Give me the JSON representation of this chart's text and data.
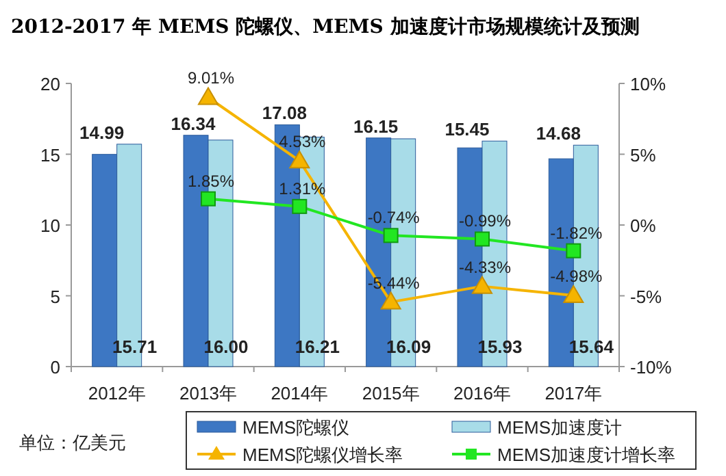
{
  "chart_data": {
    "type": "bar",
    "title": "2012-2017 年 MEMS 陀螺仪、MEMS 加速度计市场规模统计及预测",
    "categories": [
      "2012年",
      "2013年",
      "2014年",
      "2015年",
      "2016年",
      "2017年"
    ],
    "series": [
      {
        "name": "MEMS陀螺仪",
        "color": "#3d77c3",
        "values": [
          14.99,
          16.34,
          17.08,
          16.15,
          15.45,
          14.68
        ],
        "value_labels": [
          "14.99",
          "16.34",
          "17.08",
          "16.15",
          "15.45",
          "14.68"
        ]
      },
      {
        "name": "MEMS加速度计",
        "color": "#a8dce8",
        "values": [
          15.71,
          16.0,
          16.21,
          16.09,
          15.93,
          15.64
        ],
        "value_labels": [
          "15.71",
          "16.00",
          "16.21",
          "16.09",
          "15.93",
          "15.64"
        ]
      },
      {
        "name": "MEMS陀螺仪增长率",
        "type": "line",
        "axis": "y2",
        "marker": "triangle",
        "color": "#f5b400",
        "values": [
          null,
          9.01,
          4.53,
          -5.44,
          -4.33,
          -4.98
        ],
        "value_labels": [
          null,
          "9.01%",
          "4.53%",
          "-5.44%",
          "-4.33%",
          "-4.98%"
        ]
      },
      {
        "name": "MEMS加速度计增长率",
        "type": "line",
        "axis": "y2",
        "marker": "square",
        "color": "#22e622",
        "values": [
          null,
          1.85,
          1.31,
          -0.74,
          -0.99,
          -1.82
        ],
        "value_labels": [
          null,
          "1.85%",
          "1.31%",
          "-0.74%",
          "-0.99%",
          "-1.82%"
        ]
      }
    ],
    "ylim": [
      0,
      20
    ],
    "yticks": [
      0,
      5,
      10,
      15,
      20
    ],
    "y2lim": [
      -10,
      10
    ],
    "y2ticks": [
      {
        "value": -10,
        "label": "-10%"
      },
      {
        "value": -5,
        "label": "-5%"
      },
      {
        "value": 0,
        "label": "0%"
      },
      {
        "value": 5,
        "label": "5%"
      },
      {
        "value": 10,
        "label": "10%"
      }
    ],
    "grid": false,
    "legend": "bottom",
    "annotations": [
      "单位：亿美元"
    ]
  }
}
